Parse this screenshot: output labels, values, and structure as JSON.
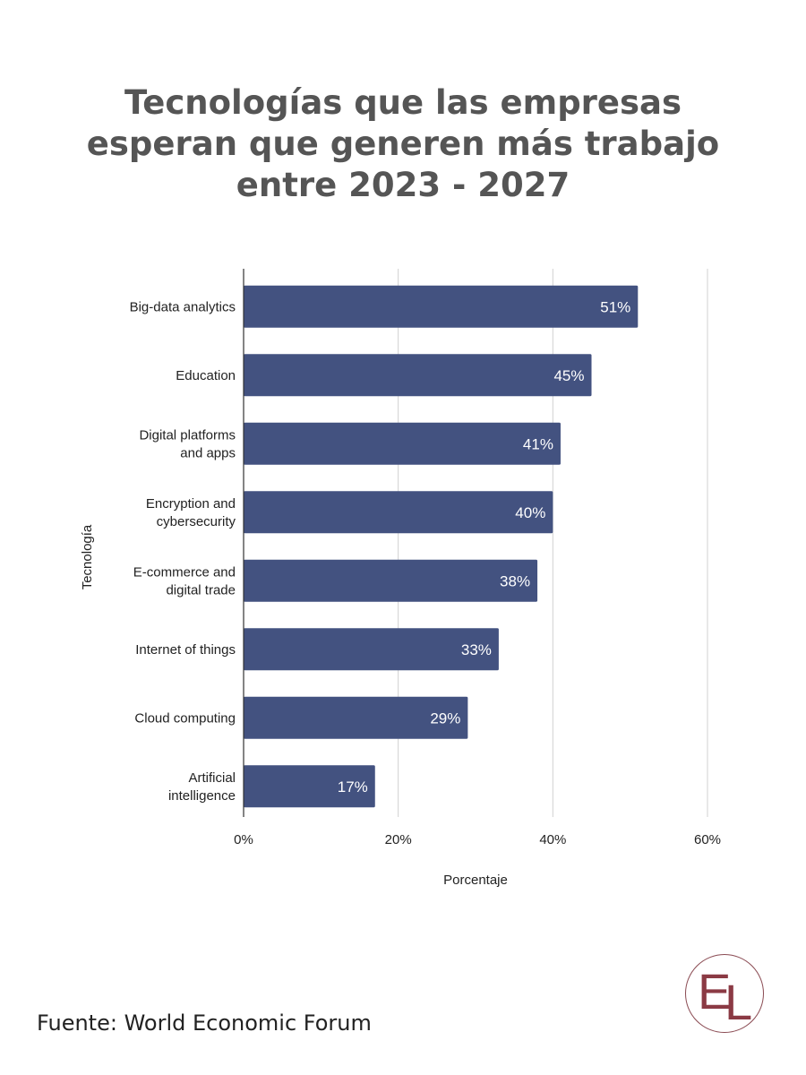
{
  "chart_data": {
    "type": "bar",
    "orientation": "horizontal",
    "title": [
      "Tecnologías que las empresas",
      "esperan que generen más trabajo",
      "entre 2023 - 2027"
    ],
    "xlabel": "Porcentaje",
    "ylabel": "Tecnología",
    "categories": [
      [
        "Big-data analytics"
      ],
      [
        "Education"
      ],
      [
        "Digital platforms",
        "and apps"
      ],
      [
        "Encryption and",
        "cybersecurity"
      ],
      [
        "E-commerce and",
        "digital trade"
      ],
      [
        "Internet of things"
      ],
      [
        "Cloud computing"
      ],
      [
        "Artificial",
        "intelligence"
      ]
    ],
    "values": [
      51,
      45,
      41,
      40,
      38,
      33,
      29,
      17
    ],
    "data_labels": [
      "51%",
      "45%",
      "41%",
      "40%",
      "38%",
      "33%",
      "29%",
      "17%"
    ],
    "xlim": [
      0,
      60
    ],
    "xticks": [
      0,
      20,
      40,
      60
    ],
    "xtick_labels": [
      "0%",
      "20%",
      "40%",
      "60%"
    ],
    "grid": "vertical",
    "bar_color": "#435280"
  },
  "footer": {
    "source": "Fuente: World Economic Forum"
  },
  "logo": {
    "text": "EL",
    "color": "#8b3a44"
  }
}
